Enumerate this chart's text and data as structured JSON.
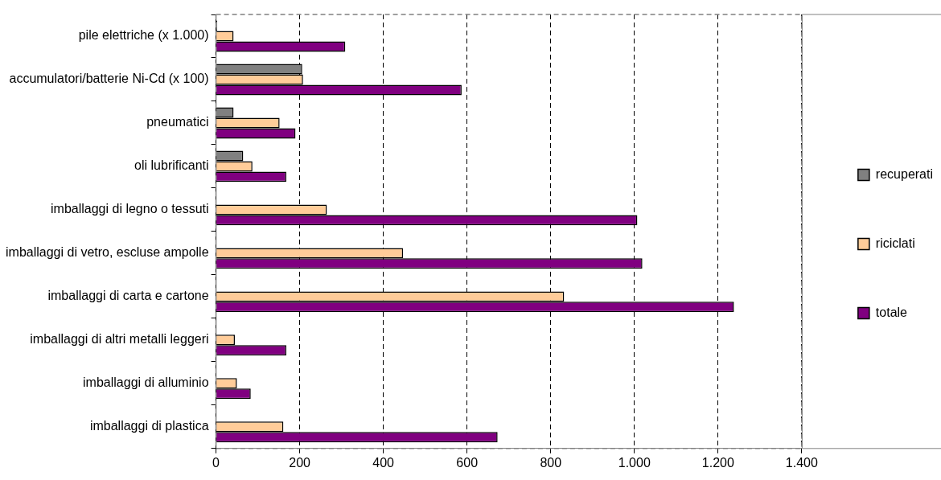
{
  "chart_data": {
    "type": "bar",
    "orientation": "horizontal",
    "categories": [
      "pile elettriche (x 1.000)",
      "accumulatori/batterie Ni-Cd (x 100)",
      "pneumatici",
      "oli lubrificanti",
      "imballaggi di legno o tessuti",
      "imballaggi di vetro, escluse ampolle",
      "imballaggi di carta e cartone",
      "imballaggi di altri metalli leggeri",
      "imballaggi di alluminio",
      "imballaggi di plastica"
    ],
    "series": [
      {
        "name": "recuperati",
        "color": "#808080",
        "values": [
          3,
          206,
          42,
          65,
          null,
          null,
          null,
          null,
          null,
          null
        ]
      },
      {
        "name": "riciclati",
        "color": "#ffcc99",
        "values": [
          42,
          208,
          152,
          87,
          265,
          447,
          832,
          45,
          50,
          161
        ]
      },
      {
        "name": "totale",
        "color": "#800080",
        "values": [
          309,
          587,
          190,
          168,
          1007,
          1019,
          1238,
          168,
          83,
          673
        ]
      }
    ],
    "xlim": [
      0,
      1400
    ],
    "xticks": [
      0,
      {
        "value": 200,
        "label": "200"
      },
      {
        "value": 400,
        "label": "400"
      },
      {
        "value": 600,
        "label": "600"
      },
      {
        "value": 800,
        "label": "800"
      },
      {
        "value": 1000,
        "label": "1.000"
      },
      {
        "value": 1200,
        "label": "1.200"
      },
      {
        "value": 1400,
        "label": "1.400"
      }
    ],
    "grid": "x",
    "legend": "right"
  }
}
